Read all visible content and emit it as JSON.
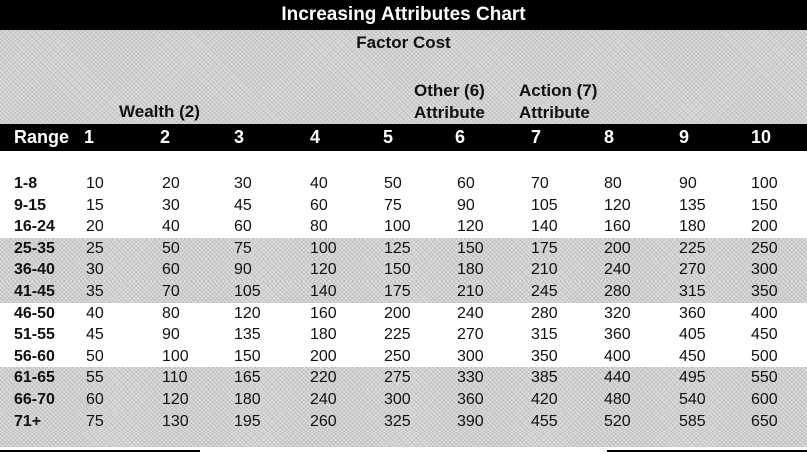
{
  "title": "Increasing Attributes Chart",
  "subtitle": "Factor Cost",
  "group_labels": {
    "wealth": "Wealth (2)",
    "other": "Other (6)",
    "other_attr": "Attribute",
    "action": "Action (7)",
    "action_attr": "Attribute"
  },
  "columns": [
    "Range",
    "1",
    "2",
    "3",
    "4",
    "5",
    "6",
    "7",
    "8",
    "9",
    "10"
  ],
  "rows": [
    {
      "range": "1-8",
      "values": [
        "10",
        "20",
        "30",
        "40",
        "50",
        "60",
        "70",
        "80",
        "90",
        "100"
      ]
    },
    {
      "range": "9-15",
      "values": [
        "15",
        "30",
        "45",
        "60",
        "75",
        "90",
        "105",
        "120",
        "135",
        "150"
      ]
    },
    {
      "range": "16-24",
      "values": [
        "20",
        "40",
        "60",
        "80",
        "100",
        "120",
        "140",
        "160",
        "180",
        "200"
      ]
    },
    {
      "range": "25-35",
      "values": [
        "25",
        "50",
        "75",
        "100",
        "125",
        "150",
        "175",
        "200",
        "225",
        "250"
      ]
    },
    {
      "range": "36-40",
      "values": [
        "30",
        "60",
        "90",
        "120",
        "150",
        "180",
        "210",
        "240",
        "270",
        "300"
      ]
    },
    {
      "range": "41-45",
      "values": [
        "35",
        "70",
        "105",
        "140",
        "175",
        "210",
        "245",
        "280",
        "315",
        "350"
      ]
    },
    {
      "range": "46-50",
      "values": [
        "40",
        "80",
        "120",
        "160",
        "200",
        "240",
        "280",
        "320",
        "360",
        "400"
      ]
    },
    {
      "range": "51-55",
      "values": [
        "45",
        "90",
        "135",
        "180",
        "225",
        "270",
        "315",
        "360",
        "405",
        "450"
      ]
    },
    {
      "range": "56-60",
      "values": [
        "50",
        "100",
        "150",
        "200",
        "250",
        "300",
        "350",
        "400",
        "450",
        "500"
      ]
    },
    {
      "range": "61-65",
      "values": [
        "55",
        "110",
        "165",
        "220",
        "275",
        "330",
        "385",
        "440",
        "495",
        "550"
      ]
    },
    {
      "range": "66-70",
      "values": [
        "60",
        "120",
        "180",
        "240",
        "300",
        "360",
        "420",
        "480",
        "540",
        "600"
      ]
    },
    {
      "range": "71+",
      "values": [
        "75",
        "130",
        "195",
        "260",
        "325",
        "390",
        "455",
        "520",
        "585",
        "650"
      ]
    }
  ]
}
